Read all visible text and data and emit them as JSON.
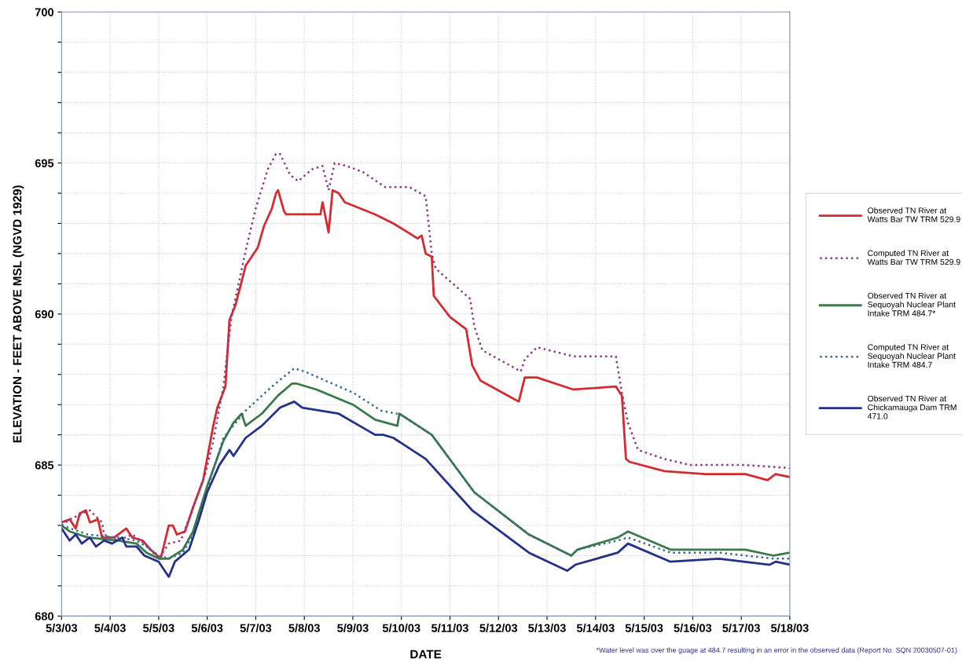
{
  "chart_data": {
    "type": "line",
    "xlabel": "DATE",
    "ylabel": "ELEVATION - FEET ABOVE MSL (NGVD 1929)",
    "annotations": [
      "*Water level was over the guage at 484.7 resulting in an error in the observed data (Report No. SQN 20030507-01)"
    ],
    "xlim": [
      "2003-05-03",
      "2003-05-18"
    ],
    "xticks": [
      {
        "value": "2003-05-03",
        "label": "5/3/03"
      },
      {
        "value": "2003-05-04",
        "label": "5/4/03"
      },
      {
        "value": "2003-05-05",
        "label": "5/5/03"
      },
      {
        "value": "2003-05-06",
        "label": "5/6/03"
      },
      {
        "value": "2003-05-07",
        "label": "5/7/03"
      },
      {
        "value": "2003-05-08",
        "label": "5/8/03"
      },
      {
        "value": "2003-05-09",
        "label": "5/9/03"
      },
      {
        "value": "2003-05-10",
        "label": "5/10/03"
      },
      {
        "value": "2003-05-11",
        "label": "5/11/03"
      },
      {
        "value": "2003-05-12",
        "label": "5/12/03"
      },
      {
        "value": "2003-05-13",
        "label": "5/13/03"
      },
      {
        "value": "2003-05-14",
        "label": "5/14/03"
      },
      {
        "value": "2003-05-15",
        "label": "5/15/03"
      },
      {
        "value": "2003-05-16",
        "label": "5/16/03"
      },
      {
        "value": "2003-05-17",
        "label": "5/17/03"
      },
      {
        "value": "2003-05-18",
        "label": "5/18/03"
      }
    ],
    "ylim": [
      680,
      700
    ],
    "yticks": [
      680,
      {
        "value": 681,
        "label": null
      },
      {
        "value": 682,
        "label": null
      },
      {
        "value": 683,
        "label": null
      },
      {
        "value": 684,
        "label": null
      },
      685,
      {
        "value": 686,
        "label": null
      },
      {
        "value": 687,
        "label": null
      },
      {
        "value": 688,
        "label": null
      },
      {
        "value": 689,
        "label": null
      },
      690,
      {
        "value": 691,
        "label": null
      },
      {
        "value": 692,
        "label": null
      },
      {
        "value": 693,
        "label": null
      },
      {
        "value": 694,
        "label": null
      },
      695,
      {
        "value": 696,
        "label": null
      },
      {
        "value": 697,
        "label": null
      },
      {
        "value": 698,
        "label": null
      },
      {
        "value": 699,
        "label": null
      },
      700
    ],
    "grid": true,
    "legend": "right",
    "marker": "none",
    "series": [
      {
        "name": "Observed TN River at Watts Bar TW TRM 529.9",
        "color": "#d42a30",
        "line_style": "solid",
        "x": [
          "2003-05-03T00:00",
          "2003-05-03T04:00",
          "2003-05-03T07:00",
          "2003-05-03T09:00",
          "2003-05-03T12:00",
          "2003-05-03T14:00",
          "2003-05-03T18:00",
          "2003-05-03T20:00",
          "2003-05-04T02:00",
          "2003-05-04T08:00",
          "2003-05-04T11:00",
          "2003-05-04T16:00",
          "2003-05-04T20:00",
          "2003-05-05T01:00",
          "2003-05-05T05:00",
          "2003-05-05T07:00",
          "2003-05-05T09:00",
          "2003-05-05T13:00",
          "2003-05-05T17:00",
          "2003-05-05T22:00",
          "2003-05-06T03:00",
          "2003-05-06T05:00",
          "2003-05-06T09:00",
          "2003-05-06T11:00",
          "2003-05-06T14:00",
          "2003-05-06T19:00",
          "2003-05-07T01:00",
          "2003-05-07T04:00",
          "2003-05-07T08:00",
          "2003-05-07T10:00",
          "2003-05-07T11:00",
          "2003-05-07T14:00",
          "2003-05-07T15:00",
          "2003-05-08T08:00",
          "2003-05-08T09:00",
          "2003-05-08T12:00",
          "2003-05-08T14:00",
          "2003-05-08T17:00",
          "2003-05-08T20:00",
          "2003-05-09T11:00",
          "2003-05-09T20:00",
          "2003-05-10T08:00",
          "2003-05-10T10:00",
          "2003-05-10T12:00",
          "2003-05-10T15:00",
          "2003-05-10T16:00",
          "2003-05-11T00:00",
          "2003-05-11T08:00",
          "2003-05-11T11:00",
          "2003-05-11T15:00",
          "2003-05-12T10:00",
          "2003-05-12T13:00",
          "2003-05-12T19:00",
          "2003-05-13T13:00",
          "2003-05-14T10:00",
          "2003-05-14T13:00",
          "2003-05-14T15:00",
          "2003-05-14T17:00",
          "2003-05-15T10:00",
          "2003-05-16T06:00",
          "2003-05-17T02:00",
          "2003-05-17T13:00",
          "2003-05-17T17:00",
          "2003-05-18T00:00"
        ],
        "values": [
          683.1,
          683.2,
          682.9,
          683.4,
          683.5,
          683.1,
          683.2,
          682.6,
          682.6,
          682.9,
          682.6,
          682.5,
          682.2,
          681.9,
          683.0,
          683.0,
          682.7,
          682.8,
          683.6,
          684.5,
          686.3,
          686.9,
          687.6,
          689.8,
          690.3,
          691.6,
          692.2,
          692.9,
          693.5,
          694.0,
          694.1,
          693.4,
          693.3,
          693.3,
          693.7,
          692.7,
          694.1,
          694.0,
          693.7,
          693.3,
          693.0,
          692.5,
          692.6,
          692.0,
          691.9,
          690.6,
          689.9,
          689.5,
          688.3,
          687.8,
          687.1,
          687.9,
          687.9,
          687.5,
          687.6,
          687.3,
          685.2,
          685.1,
          684.8,
          684.7,
          684.7,
          684.5,
          684.7,
          684.6
        ]
      },
      {
        "name": "Computed TN River at Watts Bar TW TRM 529.9",
        "color": "#8a3a8a",
        "line_style": "dotted",
        "x": [
          "2003-05-03T00:00",
          "2003-05-03T04:00",
          "2003-05-03T14:00",
          "2003-05-03T20:00",
          "2003-05-03T21:00",
          "2003-05-04T04:00",
          "2003-05-04T11:00",
          "2003-05-04T17:00",
          "2003-05-05T00:00",
          "2003-05-05T05:00",
          "2003-05-05T11:00",
          "2003-05-05T16:00",
          "2003-05-05T23:00",
          "2003-05-06T03:00",
          "2003-05-06T08:00",
          "2003-05-06T12:00",
          "2003-05-06T19:00",
          "2003-05-07T00:00",
          "2003-05-07T06:00",
          "2003-05-07T10:00",
          "2003-05-07T12:00",
          "2003-05-07T17:00",
          "2003-05-07T21:00",
          "2003-05-08T04:00",
          "2003-05-08T09:00",
          "2003-05-08T12:00",
          "2003-05-08T15:00",
          "2003-05-08T21:00",
          "2003-05-09T05:00",
          "2003-05-09T16:00",
          "2003-05-10T04:00",
          "2003-05-10T12:00",
          "2003-05-10T15:00",
          "2003-05-10T17:00",
          "2003-05-11T10:00",
          "2003-05-11T12:00",
          "2003-05-11T16:00",
          "2003-05-12T11:00",
          "2003-05-12T13:00",
          "2003-05-12T19:00",
          "2003-05-13T13:00",
          "2003-05-14T10:00",
          "2003-05-14T13:00",
          "2003-05-14T16:00",
          "2003-05-14T21:00",
          "2003-05-15T10:00",
          "2003-05-15T23:00",
          "2003-05-17T02:00",
          "2003-05-18T00:00"
        ],
        "values": [
          683.0,
          683.2,
          683.5,
          683.1,
          682.7,
          682.5,
          682.7,
          682.4,
          681.9,
          682.4,
          682.5,
          683.4,
          684.7,
          685.8,
          687.6,
          689.9,
          692.1,
          693.5,
          694.8,
          695.3,
          695.3,
          694.6,
          694.4,
          694.8,
          694.9,
          694.1,
          695.0,
          694.9,
          694.7,
          694.2,
          694.2,
          693.9,
          692.0,
          691.5,
          690.5,
          689.6,
          688.8,
          688.1,
          688.5,
          688.9,
          688.6,
          688.6,
          687.4,
          686.4,
          685.5,
          685.2,
          685.0,
          685.0,
          684.9
        ]
      },
      {
        "name": "Observed TN River at Sequoyah Nuclear Plant Intake TRM 484.7*",
        "color": "#3a7a4a",
        "line_style": "solid",
        "x": [
          "2003-05-03T00:00",
          "2003-05-03T04:00",
          "2003-05-03T13:00",
          "2003-05-04T04:00",
          "2003-05-04T13:00",
          "2003-05-04T18:00",
          "2003-05-05T00:00",
          "2003-05-05T05:00",
          "2003-05-05T12:00",
          "2003-05-05T17:00",
          "2003-05-06T00:00",
          "2003-05-06T08:00",
          "2003-05-06T13:00",
          "2003-05-06T17:00",
          "2003-05-06T19:00",
          "2003-05-07T03:00",
          "2003-05-07T11:00",
          "2003-05-07T18:00",
          "2003-05-07T20:00",
          "2003-05-08T06:00",
          "2003-05-09T00:00",
          "2003-05-09T11:00",
          "2003-05-09T22:00",
          "2003-05-09T23:00",
          "2003-05-10T15:00",
          "2003-05-11T12:00",
          "2003-05-12T15:00",
          "2003-05-13T12:00",
          "2003-05-13T15:00",
          "2003-05-14T11:00",
          "2003-05-14T16:00",
          "2003-05-15T13:00",
          "2003-05-16T13:00",
          "2003-05-17T02:00",
          "2003-05-17T16:00",
          "2003-05-18T00:00"
        ],
        "values": [
          683.0,
          682.8,
          682.6,
          682.5,
          682.4,
          682.1,
          681.9,
          681.9,
          682.2,
          682.8,
          684.3,
          685.8,
          686.4,
          686.7,
          686.3,
          686.7,
          687.3,
          687.7,
          687.7,
          687.5,
          687.0,
          686.5,
          686.3,
          686.7,
          686.0,
          684.1,
          682.7,
          682.0,
          682.2,
          682.6,
          682.8,
          682.2,
          682.2,
          682.2,
          682.0,
          682.1
        ]
      },
      {
        "name": "Computed TN River at Sequoyah Nuclear Plant Intake TRM 484.7",
        "color": "#3a6a8a",
        "line_style": "dotted",
        "x": [
          "2003-05-03T00:00",
          "2003-05-03T13:00",
          "2003-05-04T04:00",
          "2003-05-04T13:00",
          "2003-05-04T18:00",
          "2003-05-05T00:00",
          "2003-05-05T05:00",
          "2003-05-05T12:00",
          "2003-05-05T17:00",
          "2003-05-06T00:00",
          "2003-05-06T08:00",
          "2003-05-06T19:00",
          "2003-05-07T08:00",
          "2003-05-07T19:00",
          "2003-05-08T00:00",
          "2003-05-09T00:00",
          "2003-05-09T14:00",
          "2003-05-09T22:00",
          "2003-05-09T23:00",
          "2003-05-10T15:00",
          "2003-05-11T12:00",
          "2003-05-12T15:00",
          "2003-05-13T12:00",
          "2003-05-13T15:00",
          "2003-05-14T11:00",
          "2003-05-14T16:00",
          "2003-05-15T13:00",
          "2003-05-16T13:00",
          "2003-05-17T16:00",
          "2003-05-18T00:00"
        ],
        "values": [
          683.0,
          682.7,
          682.6,
          682.5,
          682.3,
          682.0,
          681.9,
          682.1,
          682.7,
          684.2,
          685.9,
          686.8,
          687.6,
          688.2,
          688.1,
          687.4,
          686.8,
          686.7,
          686.7,
          686.0,
          684.1,
          682.7,
          682.0,
          682.2,
          682.5,
          682.6,
          682.1,
          682.1,
          681.9,
          681.9
        ]
      },
      {
        "name": "Observed TN River at Chickamauga Dam TRM 471.0",
        "color": "#24308a",
        "line_style": "solid",
        "x": [
          "2003-05-03T00:00",
          "2003-05-03T04:00",
          "2003-05-03T07:00",
          "2003-05-03T10:00",
          "2003-05-03T14:00",
          "2003-05-03T17:00",
          "2003-05-03T21:00",
          "2003-05-04T01:00",
          "2003-05-04T06:00",
          "2003-05-04T08:00",
          "2003-05-04T13:00",
          "2003-05-04T17:00",
          "2003-05-05T00:00",
          "2003-05-05T05:00",
          "2003-05-05T08:00",
          "2003-05-05T15:00",
          "2003-05-05T20:00",
          "2003-05-06T00:00",
          "2003-05-06T06:00",
          "2003-05-06T11:00",
          "2003-05-06T13:00",
          "2003-05-06T19:00",
          "2003-05-07T03:00",
          "2003-05-07T12:00",
          "2003-05-07T19:00",
          "2003-05-07T23:00",
          "2003-05-08T17:00",
          "2003-05-09T11:00",
          "2003-05-09T15:00",
          "2003-05-09T20:00",
          "2003-05-10T12:00",
          "2003-05-11T11:00",
          "2003-05-12T15:00",
          "2003-05-13T10:00",
          "2003-05-13T14:00",
          "2003-05-14T11:00",
          "2003-05-14T16:00",
          "2003-05-15T13:00",
          "2003-05-16T13:00",
          "2003-05-17T14:00",
          "2003-05-17T17:00",
          "2003-05-18T00:00"
        ],
        "values": [
          682.9,
          682.5,
          682.7,
          682.4,
          682.6,
          682.3,
          682.5,
          682.4,
          682.6,
          682.3,
          682.3,
          682.0,
          681.8,
          681.3,
          681.8,
          682.2,
          683.2,
          684.1,
          685.0,
          685.5,
          685.3,
          685.9,
          686.3,
          686.9,
          687.1,
          686.9,
          686.7,
          686.0,
          686.0,
          685.9,
          685.2,
          683.5,
          682.1,
          681.5,
          681.7,
          682.1,
          682.4,
          681.8,
          681.9,
          681.7,
          681.8,
          681.7
        ]
      }
    ]
  }
}
